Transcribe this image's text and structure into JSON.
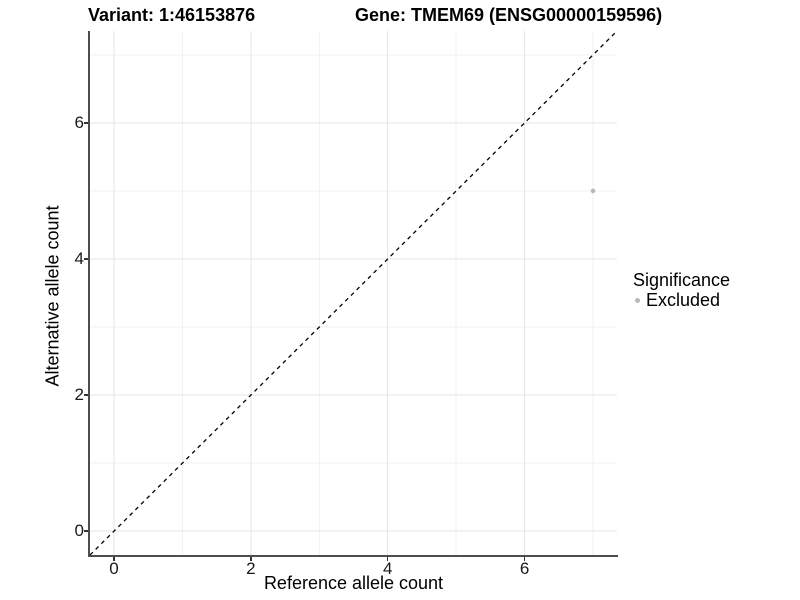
{
  "titles": {
    "variant": "Variant: 1:46153876",
    "gene": "Gene: TMEM69 (ENSG00000159596)"
  },
  "axes": {
    "x": {
      "label": "Reference allele count",
      "tick_values": [
        0,
        2,
        4,
        6
      ],
      "tick_labels": [
        "0",
        "2",
        "4",
        "6"
      ],
      "minor_ticks": [
        1,
        3,
        5,
        7
      ]
    },
    "y": {
      "label": "Alternative allele count",
      "tick_values": [
        0,
        2,
        4,
        6
      ],
      "tick_labels": [
        "0",
        "2",
        "4",
        "6"
      ],
      "minor_ticks": [
        1,
        3,
        5,
        7
      ]
    }
  },
  "legend": {
    "title": "Significance",
    "items": [
      {
        "label": "Excluded",
        "color": "#b8b8b8"
      }
    ]
  },
  "colors": {
    "point": "#b8b8b8",
    "axis_line": "#4d4d4d",
    "grid_major": "#e6e6e6",
    "grid_minor": "#f2f2f2",
    "ref_line": "#000000"
  },
  "chart_data": {
    "type": "scatter",
    "title": "Variant: 1:46153876 — Gene: TMEM69 (ENSG00000159596)",
    "xlabel": "Reference allele count",
    "ylabel": "Alternative allele count",
    "xlim": [
      -0.35,
      7.35
    ],
    "ylim": [
      -0.35,
      7.35
    ],
    "grid": true,
    "legend_position": "right",
    "series": [
      {
        "name": "Excluded",
        "color": "#b8b8b8",
        "points": [
          {
            "x": 7,
            "y": 5
          }
        ]
      }
    ],
    "reference_line": {
      "type": "identity",
      "style": "dashed",
      "color": "#000000",
      "x1": -0.35,
      "y1": -0.35,
      "x2": 7.35,
      "y2": 7.35
    }
  }
}
